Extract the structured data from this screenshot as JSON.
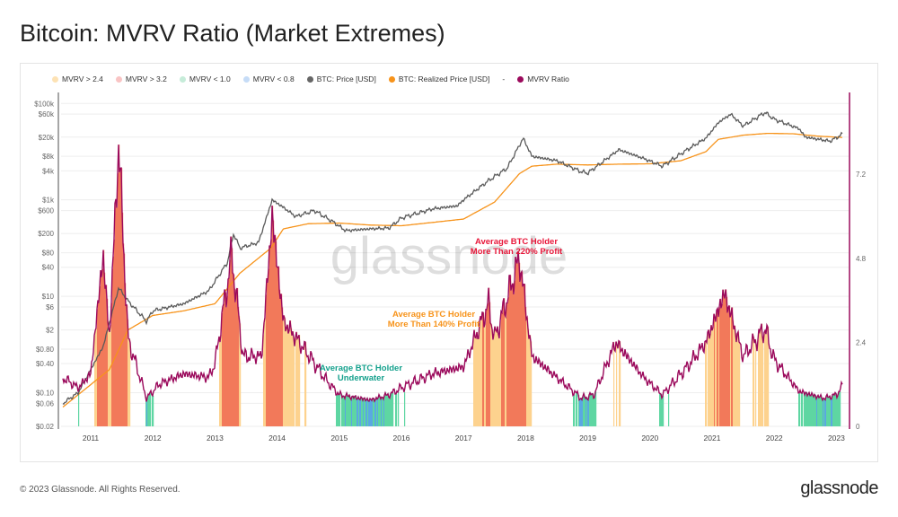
{
  "title": "Bitcoin: MVRV Ratio (Market Extremes)",
  "legend": [
    {
      "label": "MVRV > 2.4",
      "color": "#fde2b4"
    },
    {
      "label": "MVRV > 3.2",
      "color": "#f9c4c4"
    },
    {
      "label": "MVRV < 1.0",
      "color": "#c6ecd9"
    },
    {
      "label": "MVRV < 0.8",
      "color": "#c6dcf7"
    },
    {
      "label": "BTC: Price [USD]",
      "color": "#666666"
    },
    {
      "label": "BTC: Realized Price [USD]",
      "color": "#f7931a"
    },
    {
      "label": "-",
      "color": ""
    },
    {
      "label": "MVRV Ratio",
      "color": "#9b0a5c"
    }
  ],
  "annotations": [
    {
      "lines": [
        "Average BTC Holder",
        "More Than 220% Profit"
      ],
      "color": "#e8173a"
    },
    {
      "lines": [
        "Average BTC Holder",
        "More Than 140% Profit"
      ],
      "color": "#f7931a"
    },
    {
      "lines": [
        "Average BTC Holder",
        "Underwater"
      ],
      "color": "#14a08c"
    }
  ],
  "watermark": "glassnode",
  "footer": "© 2023 Glassnode. All Rights Reserved.",
  "logo": "glassnode",
  "chart_data": {
    "type": "line",
    "x_ticks": [
      "2011",
      "2012",
      "2013",
      "2014",
      "2015",
      "2016",
      "2017",
      "2018",
      "2019",
      "2020",
      "2021",
      "2022",
      "2023"
    ],
    "y_left_ticks": [
      "$100k",
      "$60k",
      "$20k",
      "$8k",
      "$4k",
      "$1k",
      "$600",
      "$200",
      "$80",
      "$40",
      "$10",
      "$6",
      "$2",
      "$0.80",
      "$0.40",
      "$0.10",
      "$0.06",
      "$0.02"
    ],
    "y_left_scale": "log",
    "y_left_range": [
      0.02,
      100000
    ],
    "y_right_ticks": [
      "7.2",
      "4.8",
      "2.4",
      "0"
    ],
    "y_right_range": [
      0,
      9.2
    ],
    "band_thresholds": {
      "gt_2_4": 2.4,
      "gt_3_2": 3.2,
      "lt_1_0": 1.0,
      "lt_0_8": 0.8
    },
    "band_colors": {
      "gt_2_4": "#fdd28e",
      "gt_3_2": "#f2795a",
      "lt_1_0": "#5ed6a2",
      "lt_0_8": "#5aa8e2"
    },
    "series": [
      {
        "name": "BTC: Price [USD]",
        "axis": "left",
        "color": "#5a5a5a",
        "points": [
          [
            2010.55,
            0.06
          ],
          [
            2010.8,
            0.1
          ],
          [
            2011.0,
            0.3
          ],
          [
            2011.2,
            0.9
          ],
          [
            2011.45,
            15
          ],
          [
            2011.6,
            8
          ],
          [
            2011.9,
            3
          ],
          [
            2012.0,
            5
          ],
          [
            2012.5,
            7
          ],
          [
            2012.9,
            13
          ],
          [
            2013.2,
            50
          ],
          [
            2013.3,
            200
          ],
          [
            2013.4,
            100
          ],
          [
            2013.7,
            130
          ],
          [
            2013.92,
            1000
          ],
          [
            2014.1,
            700
          ],
          [
            2014.3,
            450
          ],
          [
            2014.6,
            600
          ],
          [
            2014.9,
            350
          ],
          [
            2015.1,
            230
          ],
          [
            2015.5,
            250
          ],
          [
            2015.8,
            260
          ],
          [
            2016.0,
            420
          ],
          [
            2016.5,
            650
          ],
          [
            2016.9,
            750
          ],
          [
            2017.0,
            1000
          ],
          [
            2017.4,
            2500
          ],
          [
            2017.7,
            4500
          ],
          [
            2017.96,
            19000
          ],
          [
            2018.1,
            8000
          ],
          [
            2018.5,
            6500
          ],
          [
            2018.9,
            3800
          ],
          [
            2019.0,
            3600
          ],
          [
            2019.5,
            11000
          ],
          [
            2019.9,
            7200
          ],
          [
            2020.2,
            5000
          ],
          [
            2020.6,
            11000
          ],
          [
            2020.9,
            19000
          ],
          [
            2021.1,
            40000
          ],
          [
            2021.3,
            60000
          ],
          [
            2021.5,
            34000
          ],
          [
            2021.85,
            65000
          ],
          [
            2022.0,
            47000
          ],
          [
            2022.4,
            30000
          ],
          [
            2022.5,
            20000
          ],
          [
            2022.9,
            16500
          ],
          [
            2023.1,
            23000
          ]
        ]
      },
      {
        "name": "BTC: Realized Price [USD]",
        "axis": "left",
        "color": "#f7931a",
        "points": [
          [
            2010.55,
            0.05
          ],
          [
            2011.3,
            0.3
          ],
          [
            2011.6,
            2
          ],
          [
            2012.0,
            4
          ],
          [
            2012.5,
            5
          ],
          [
            2013.0,
            7
          ],
          [
            2013.4,
            30
          ],
          [
            2013.9,
            100
          ],
          [
            2014.1,
            250
          ],
          [
            2014.5,
            320
          ],
          [
            2015.0,
            330
          ],
          [
            2015.5,
            300
          ],
          [
            2016.0,
            290
          ],
          [
            2016.5,
            340
          ],
          [
            2017.0,
            400
          ],
          [
            2017.5,
            900
          ],
          [
            2017.9,
            3500
          ],
          [
            2018.1,
            5000
          ],
          [
            2018.5,
            5500
          ],
          [
            2019.0,
            5300
          ],
          [
            2019.5,
            5500
          ],
          [
            2020.0,
            5600
          ],
          [
            2020.5,
            6500
          ],
          [
            2020.9,
            10000
          ],
          [
            2021.1,
            18000
          ],
          [
            2021.5,
            22000
          ],
          [
            2021.9,
            24000
          ],
          [
            2022.3,
            23500
          ],
          [
            2022.7,
            21000
          ],
          [
            2023.1,
            19700
          ]
        ]
      },
      {
        "name": "MVRV Ratio",
        "axis": "right",
        "color": "#9b0a5c",
        "points": [
          [
            2010.55,
            1.4
          ],
          [
            2010.8,
            1.1
          ],
          [
            2011.0,
            1.5
          ],
          [
            2011.2,
            4.9
          ],
          [
            2011.3,
            2.5
          ],
          [
            2011.45,
            8.1
          ],
          [
            2011.6,
            2.5
          ],
          [
            2011.9,
            0.8
          ],
          [
            2012.1,
            1.2
          ],
          [
            2012.5,
            1.5
          ],
          [
            2012.9,
            1.4
          ],
          [
            2013.0,
            1.8
          ],
          [
            2013.27,
            4.9
          ],
          [
            2013.45,
            2.0
          ],
          [
            2013.75,
            2.0
          ],
          [
            2013.92,
            6.0
          ],
          [
            2014.1,
            3.0
          ],
          [
            2014.4,
            2.3
          ],
          [
            2014.8,
            1.3
          ],
          [
            2015.0,
            0.9
          ],
          [
            2015.5,
            0.75
          ],
          [
            2015.8,
            0.9
          ],
          [
            2016.0,
            1.1
          ],
          [
            2016.5,
            1.5
          ],
          [
            2017.0,
            1.7
          ],
          [
            2017.4,
            3.5
          ],
          [
            2017.5,
            2.5
          ],
          [
            2017.9,
            4.8
          ],
          [
            2018.1,
            2.0
          ],
          [
            2018.5,
            1.4
          ],
          [
            2018.9,
            0.8
          ],
          [
            2019.1,
            0.9
          ],
          [
            2019.45,
            2.4
          ],
          [
            2019.9,
            1.4
          ],
          [
            2020.2,
            0.9
          ],
          [
            2020.6,
            1.7
          ],
          [
            2020.9,
            2.4
          ],
          [
            2021.2,
            3.8
          ],
          [
            2021.5,
            2.0
          ],
          [
            2021.85,
            2.8
          ],
          [
            2022.0,
            1.9
          ],
          [
            2022.4,
            1.0
          ],
          [
            2022.8,
            0.8
          ],
          [
            2023.0,
            0.9
          ],
          [
            2023.1,
            1.15
          ]
        ]
      }
    ]
  }
}
